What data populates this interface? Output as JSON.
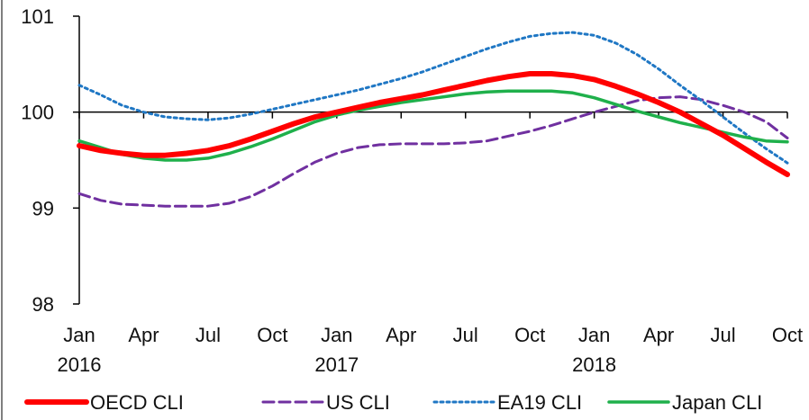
{
  "chart_data": {
    "type": "line",
    "title": "",
    "xlabel": "",
    "ylabel": "",
    "ylim": [
      98,
      101
    ],
    "yticks": [
      "98",
      "99",
      "100",
      "101"
    ],
    "x_tick_labels": [
      {
        "month": "Jan",
        "year": "2016"
      },
      {
        "month": "Apr",
        "year": ""
      },
      {
        "month": "Jul",
        "year": ""
      },
      {
        "month": "Oct",
        "year": ""
      },
      {
        "month": "Jan",
        "year": "2017"
      },
      {
        "month": "Apr",
        "year": ""
      },
      {
        "month": "Jul",
        "year": ""
      },
      {
        "month": "Oct",
        "year": ""
      },
      {
        "month": "Jan",
        "year": "2018"
      },
      {
        "month": "Apr",
        "year": ""
      },
      {
        "month": "Jul",
        "year": ""
      },
      {
        "month": "Oct",
        "year": ""
      }
    ],
    "x": [
      "2016-01",
      "2016-02",
      "2016-03",
      "2016-04",
      "2016-05",
      "2016-06",
      "2016-07",
      "2016-08",
      "2016-09",
      "2016-10",
      "2016-11",
      "2016-12",
      "2017-01",
      "2017-02",
      "2017-03",
      "2017-04",
      "2017-05",
      "2017-06",
      "2017-07",
      "2017-08",
      "2017-09",
      "2017-10",
      "2017-11",
      "2017-12",
      "2018-01",
      "2018-02",
      "2018-03",
      "2018-04",
      "2018-05",
      "2018-06",
      "2018-07",
      "2018-08",
      "2018-09",
      "2018-10"
    ],
    "grid": false,
    "legend_position": "bottom",
    "series": [
      {
        "name": "OECD CLI",
        "color": "#ff0000",
        "style": "solid",
        "values": [
          99.65,
          99.6,
          99.57,
          99.55,
          99.55,
          99.57,
          99.6,
          99.65,
          99.72,
          99.8,
          99.88,
          99.95,
          100.0,
          100.05,
          100.1,
          100.14,
          100.18,
          100.23,
          100.28,
          100.33,
          100.37,
          100.4,
          100.4,
          100.38,
          100.34,
          100.27,
          100.19,
          100.1,
          100.0,
          99.88,
          99.76,
          99.62,
          99.48,
          99.35
        ]
      },
      {
        "name": "US CLI",
        "color": "#7030a0",
        "style": "dashed",
        "values": [
          99.15,
          99.08,
          99.04,
          99.03,
          99.02,
          99.02,
          99.02,
          99.05,
          99.12,
          99.23,
          99.36,
          99.48,
          99.57,
          99.63,
          99.66,
          99.67,
          99.67,
          99.67,
          99.68,
          99.7,
          99.75,
          99.8,
          99.86,
          99.93,
          100.0,
          100.06,
          100.12,
          100.15,
          100.16,
          100.13,
          100.07,
          100.0,
          99.9,
          99.73
        ]
      },
      {
        "name": "EA19 CLI",
        "color": "#1f77c4",
        "style": "dotted",
        "values": [
          100.28,
          100.18,
          100.07,
          100.0,
          99.95,
          99.93,
          99.92,
          99.94,
          99.98,
          100.03,
          100.08,
          100.13,
          100.18,
          100.23,
          100.29,
          100.35,
          100.42,
          100.5,
          100.58,
          100.66,
          100.73,
          100.79,
          100.82,
          100.83,
          100.8,
          100.72,
          100.6,
          100.45,
          100.28,
          100.12,
          99.95,
          99.78,
          99.62,
          99.47
        ]
      },
      {
        "name": "Japan CLI",
        "color": "#1fb04b",
        "style": "solid",
        "values": [
          99.7,
          99.63,
          99.56,
          99.52,
          99.5,
          99.5,
          99.52,
          99.57,
          99.64,
          99.72,
          99.81,
          99.9,
          99.97,
          100.02,
          100.06,
          100.1,
          100.13,
          100.16,
          100.19,
          100.21,
          100.22,
          100.22,
          100.22,
          100.2,
          100.15,
          100.08,
          100.01,
          99.95,
          99.89,
          99.84,
          99.79,
          99.74,
          99.7,
          99.69
        ]
      }
    ]
  }
}
